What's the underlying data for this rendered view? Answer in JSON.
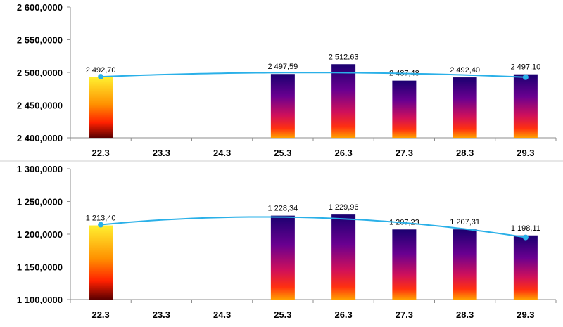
{
  "chart_data": [
    {
      "type": "bar",
      "categories": [
        "22.3",
        "23.3",
        "24.3",
        "25.3",
        "26.3",
        "27.3",
        "28.3",
        "29.3"
      ],
      "values": [
        2492.7,
        null,
        null,
        2497.59,
        2512.63,
        2487.48,
        2492.4,
        2497.1
      ],
      "data_labels": [
        "2 492,70",
        "",
        "",
        "2 497,59",
        "2 512,63",
        "2 487,48",
        "2 492,40",
        "2 497,10"
      ],
      "trendline": "polynomial",
      "ylim": [
        2400,
        2600
      ],
      "yticks": [
        2400,
        2450,
        2500,
        2550,
        2600
      ],
      "ytick_labels": [
        "2 400,0000",
        "2 450,0000",
        "2 500,0000",
        "2 550,0000",
        "2 600,0000"
      ],
      "grid": false,
      "colors": {
        "first_bar": [
          "#fff030",
          "#ff9000",
          "#ff2000",
          "#5a0000"
        ],
        "other_bars": [
          "#1a0070",
          "#6a0090",
          "#d0105a",
          "#ff3010",
          "#ffa000"
        ],
        "trend": "#2ab0e8"
      }
    },
    {
      "type": "bar",
      "categories": [
        "22.3",
        "23.3",
        "24.3",
        "25.3",
        "26.3",
        "27.3",
        "28.3",
        "29.3"
      ],
      "values": [
        1213.4,
        null,
        null,
        1228.34,
        1229.96,
        1207.23,
        1207.31,
        1198.11
      ],
      "data_labels": [
        "1 213,40",
        "",
        "",
        "1 228,34",
        "1 229,96",
        "1 207,23",
        "1 207,31",
        "1 198,11"
      ],
      "trendline": "polynomial",
      "ylim": [
        1100,
        1300
      ],
      "yticks": [
        1100,
        1150,
        1200,
        1250,
        1300
      ],
      "ytick_labels": [
        "1 100,0000",
        "1 150,0000",
        "1 200,0000",
        "1 250,0000",
        "1 300,0000"
      ],
      "grid": false,
      "colors": {
        "first_bar": [
          "#fff030",
          "#ff9000",
          "#ff2000",
          "#5a0000"
        ],
        "other_bars": [
          "#1a0070",
          "#6a0090",
          "#d0105a",
          "#ff3010",
          "#ffa000"
        ],
        "trend": "#2ab0e8"
      }
    }
  ]
}
